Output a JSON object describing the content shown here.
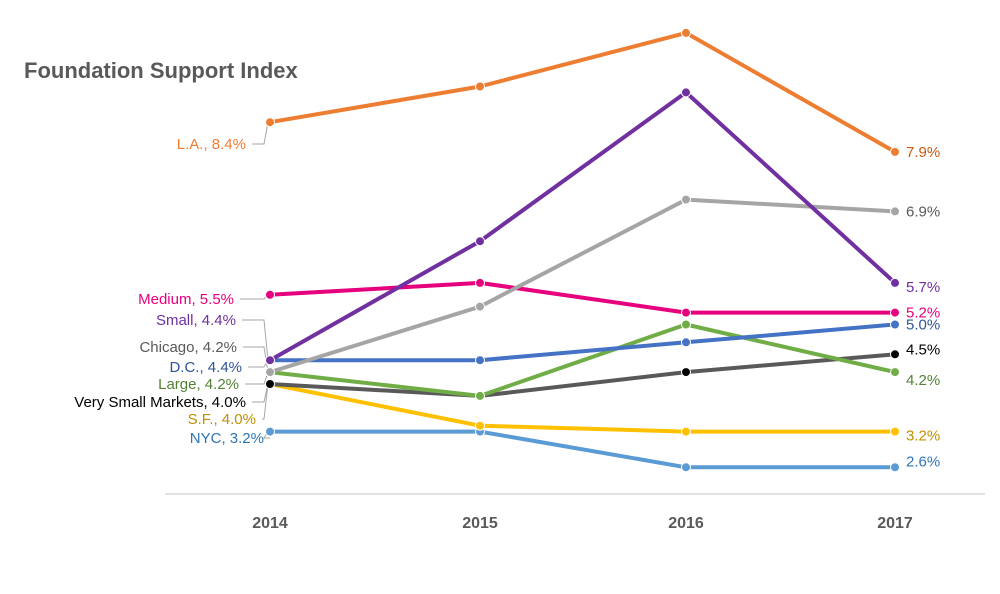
{
  "chart_data": {
    "type": "line",
    "title": "Foundation Support Index",
    "xlabel": "",
    "ylabel": "",
    "categories": [
      "2014",
      "2015",
      "2016",
      "2017"
    ],
    "grid": false,
    "legend": "inline labels at line ends",
    "series": [
      {
        "name": "L.A.",
        "color": "#ED7D31",
        "values": [
          8.4,
          9.0,
          9.9,
          7.9
        ],
        "left_label": "L.A., 8.4%",
        "right_label": "7.9%"
      },
      {
        "name": "Small",
        "color": "#7030A0",
        "values": [
          4.4,
          6.4,
          8.9,
          5.7
        ],
        "left_label": "Small, 4.4%",
        "right_label": "5.7%"
      },
      {
        "name": "Chicago",
        "color": "#A5A5A5",
        "values": [
          4.2,
          5.3,
          7.1,
          6.9
        ],
        "left_label": "Chicago, 4.2%",
        "right_label": "6.9%"
      },
      {
        "name": "Medium",
        "color": "#E6007E",
        "values": [
          5.5,
          5.7,
          5.2,
          5.2
        ],
        "left_label": "Medium, 5.5%",
        "right_label": "5.2%"
      },
      {
        "name": "D.C.",
        "color": "#4472C4",
        "values": [
          4.4,
          4.4,
          4.7,
          5.0
        ],
        "left_label": "D.C., 4.4%",
        "right_label": "5.0%"
      },
      {
        "name": "Large",
        "color": "#70AD47",
        "values": [
          4.2,
          3.8,
          5.0,
          4.2
        ],
        "left_label": "Large, 4.2%",
        "right_label": "4.2%"
      },
      {
        "name": "Very Small Markets",
        "color": "#595959",
        "values": [
          4.0,
          3.8,
          4.2,
          4.5
        ],
        "left_label": "Very Small Markets, 4.0%",
        "right_label": "4.5%"
      },
      {
        "name": "S.F.",
        "color": "#FFC000",
        "values": [
          4.0,
          3.3,
          3.2,
          3.2
        ],
        "left_label": "S.F., 4.0%",
        "right_label": "3.2%"
      },
      {
        "name": "NYC",
        "color": "#5B9BD5",
        "values": [
          3.2,
          3.2,
          2.6,
          2.6
        ],
        "left_label": "NYC, 3.2%",
        "right_label": "2.6%"
      }
    ],
    "left_label_colors": {
      "L.A.": "#ED7D31",
      "Small": "#7030A0",
      "Chicago": "#595959",
      "Medium": "#E6007E",
      "D.C.": "#2F5597",
      "Large": "#548235",
      "Very Small Markets": "#000000",
      "S.F.": "#BF9000",
      "NYC": "#2E75B6"
    },
    "right_label_colors": {
      "L.A.": "#C55A11",
      "Small": "#7030A0",
      "Chicago": "#595959",
      "Medium": "#E6007E",
      "D.C.": "#2F5597",
      "Large": "#548235",
      "Very Small Markets": "#000000",
      "S.F.": "#BF9000",
      "NYC": "#2E75B6"
    },
    "marker_colors": {
      "Very Small Markets": "#000000"
    }
  }
}
